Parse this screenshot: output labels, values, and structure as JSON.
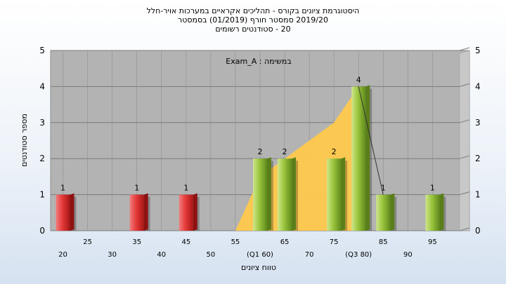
{
  "title_lines": [
    "היסטוגרמת ציונים בקורס - תהליכים אקראיים במערכות אויר-חלל",
    "2019/20 סמסטר חורף (01/2019) בסמסטר",
    "20 - סטודנטים רשומים"
  ],
  "chart_data": {
    "type": "bar",
    "annotation": "במשימה : Exam_A",
    "xlabel": "טווח ציונים",
    "ylabel": "מספר סטודנטים",
    "ylim": [
      0,
      5
    ],
    "y_ticks": [
      "0",
      "1",
      "2",
      "3",
      "4",
      "5"
    ],
    "x_ticks": [
      {
        "value": 20,
        "label": "20"
      },
      {
        "value": 25,
        "label": "25"
      },
      {
        "value": 30,
        "label": "30"
      },
      {
        "value": 35,
        "label": "35"
      },
      {
        "value": 40,
        "label": "40"
      },
      {
        "value": 45,
        "label": "45"
      },
      {
        "value": 50,
        "label": "50"
      },
      {
        "value": 55,
        "label": "55"
      },
      {
        "value": 60,
        "label": "(Q1 60)"
      },
      {
        "value": 65,
        "label": "65"
      },
      {
        "value": 70,
        "label": "70"
      },
      {
        "value": 75,
        "label": "75"
      },
      {
        "value": 80,
        "label": "(Q3 80)"
      },
      {
        "value": 85,
        "label": "85"
      },
      {
        "value": 90,
        "label": "90"
      },
      {
        "value": 95,
        "label": "95"
      }
    ],
    "bars": [
      {
        "x": 20,
        "value": 1,
        "label": "1",
        "color": "#e53a3a"
      },
      {
        "x": 35,
        "value": 1,
        "label": "1",
        "color": "#e53a3a"
      },
      {
        "x": 45,
        "value": 1,
        "label": "1",
        "color": "#e53a3a"
      },
      {
        "x": 60,
        "value": 2,
        "label": "2",
        "color": "#9bc53d"
      },
      {
        "x": 65,
        "value": 2,
        "label": "2",
        "color": "#9bc53d"
      },
      {
        "x": 75,
        "value": 2,
        "label": "2",
        "color": "#9bc53d"
      },
      {
        "x": 80,
        "value": 4,
        "label": "4",
        "color": "#9bc53d"
      },
      {
        "x": 85,
        "value": 1,
        "label": "1",
        "color": "#9bc53d"
      },
      {
        "x": 95,
        "value": 1,
        "label": "1",
        "color": "#9bc53d"
      }
    ],
    "area": [
      {
        "x": 55,
        "y": 0
      },
      {
        "x": 60,
        "y": 1.5
      },
      {
        "x": 65,
        "y": 2
      },
      {
        "x": 75,
        "y": 3
      },
      {
        "x": 80,
        "y": 4
      },
      {
        "x": 80,
        "y": 0
      }
    ],
    "area_color": "#ffc94d",
    "trend_line": [
      {
        "x": 80,
        "y": 4
      },
      {
        "x": 85,
        "y": 1
      }
    ],
    "colors": {
      "plot_background": "#b3b3b3",
      "gridline": "#7a7a7a",
      "fail_bar": "#e53a3a",
      "pass_bar": "#9bc53d"
    },
    "grid": true
  }
}
